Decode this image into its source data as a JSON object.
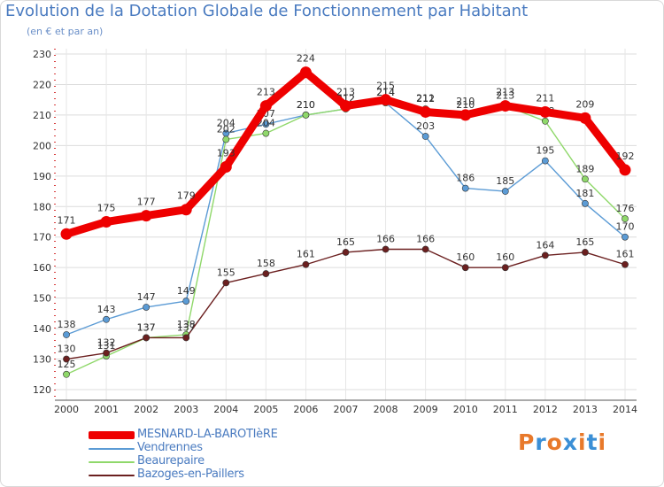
{
  "title": "Evolution de la Dotation Globale de Fonctionnement par Habitant",
  "subtitle": "(en € et par an)",
  "logo": {
    "text": "Proxiti",
    "letter_colors": [
      "#e8792b",
      "#3b8fd6",
      "#e8792b",
      "#3b8fd6",
      "#e8792b",
      "#3b8fd6",
      "#e8792b"
    ]
  },
  "chart_data": {
    "type": "line",
    "title": "Evolution de la Dotation Globale de Fonctionnement par Habitant",
    "subtitle": "(en € et par an)",
    "xlabel": "",
    "ylabel": "",
    "x": [
      "2000",
      "2001",
      "2002",
      "2003",
      "2004",
      "2005",
      "2006",
      "2007",
      "2008",
      "2009",
      "2010",
      "2011",
      "2012",
      "2013",
      "2014"
    ],
    "ylim": [
      120,
      230
    ],
    "yticks": [
      120,
      130,
      140,
      150,
      160,
      170,
      180,
      190,
      200,
      210,
      220,
      230
    ],
    "grid": true,
    "legend_position": "bottom-left",
    "series": [
      {
        "name": "Vendrennes",
        "color": "#5b9bd5",
        "values": [
          138,
          143,
          147,
          149,
          204,
          207,
          210,
          212,
          214,
          203,
          186,
          185,
          195,
          181,
          170
        ]
      },
      {
        "name": "Beaurepaire",
        "color": "#8fd86a",
        "values": [
          125,
          131,
          137,
          138,
          202,
          204,
          210,
          212,
          214,
          212,
          210,
          213,
          208,
          189,
          176
        ]
      },
      {
        "name": "Bazoges-en-Paillers",
        "color": "#6b1f1f",
        "values": [
          130,
          132,
          137,
          137,
          155,
          158,
          161,
          165,
          166,
          166,
          160,
          160,
          164,
          165,
          161
        ]
      },
      {
        "name": "MESNARD-LA-BAROTIèRE",
        "color": "#ee0000",
        "values": [
          171,
          175,
          177,
          179,
          193,
          213,
          224,
          213,
          215,
          211,
          210,
          213,
          211,
          209,
          192
        ]
      }
    ],
    "legend": [
      "MESNARD-LA-BAROTIèRE",
      "Vendrennes",
      "Beaurepaire",
      "Bazoges-en-Paillers"
    ]
  }
}
